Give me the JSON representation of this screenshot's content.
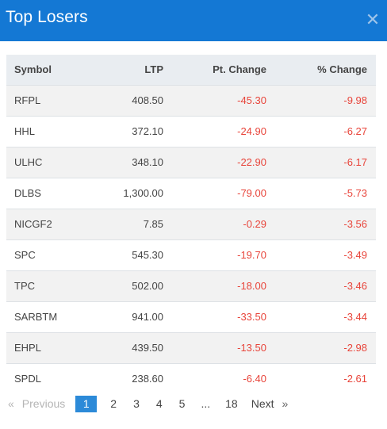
{
  "modal": {
    "title": "Top Losers",
    "close_icon": "close-icon"
  },
  "table": {
    "headers": {
      "symbol": "Symbol",
      "ltp": "LTP",
      "pt_change": "Pt. Change",
      "pct_change": "% Change"
    },
    "rows": [
      {
        "symbol": "RFPL",
        "ltp": "408.50",
        "pt_change": "-45.30",
        "pct_change": "-9.98"
      },
      {
        "symbol": "HHL",
        "ltp": "372.10",
        "pt_change": "-24.90",
        "pct_change": "-6.27"
      },
      {
        "symbol": "ULHC",
        "ltp": "348.10",
        "pt_change": "-22.90",
        "pct_change": "-6.17"
      },
      {
        "symbol": "DLBS",
        "ltp": "1,300.00",
        "pt_change": "-79.00",
        "pct_change": "-5.73"
      },
      {
        "symbol": "NICGF2",
        "ltp": "7.85",
        "pt_change": "-0.29",
        "pct_change": "-3.56"
      },
      {
        "symbol": "SPC",
        "ltp": "545.30",
        "pt_change": "-19.70",
        "pct_change": "-3.49"
      },
      {
        "symbol": "TPC",
        "ltp": "502.00",
        "pt_change": "-18.00",
        "pct_change": "-3.46"
      },
      {
        "symbol": "SARBTM",
        "ltp": "941.00",
        "pt_change": "-33.50",
        "pct_change": "-3.44"
      },
      {
        "symbol": "EHPL",
        "ltp": "439.50",
        "pt_change": "-13.50",
        "pct_change": "-2.98"
      },
      {
        "symbol": "SPDL",
        "ltp": "238.60",
        "pt_change": "-6.40",
        "pct_change": "-2.61"
      }
    ]
  },
  "pagination": {
    "prev_arrow": "«",
    "prev_label": "Previous",
    "pages": [
      "1",
      "2",
      "3",
      "4",
      "5"
    ],
    "ellipsis": "...",
    "last_page": "18",
    "next_label": "Next",
    "next_arrow": "»",
    "active_page": "1"
  },
  "colors": {
    "header_bg": "#1478d4",
    "negative": "#e8443a",
    "active_page_bg": "#2c8ad8"
  }
}
